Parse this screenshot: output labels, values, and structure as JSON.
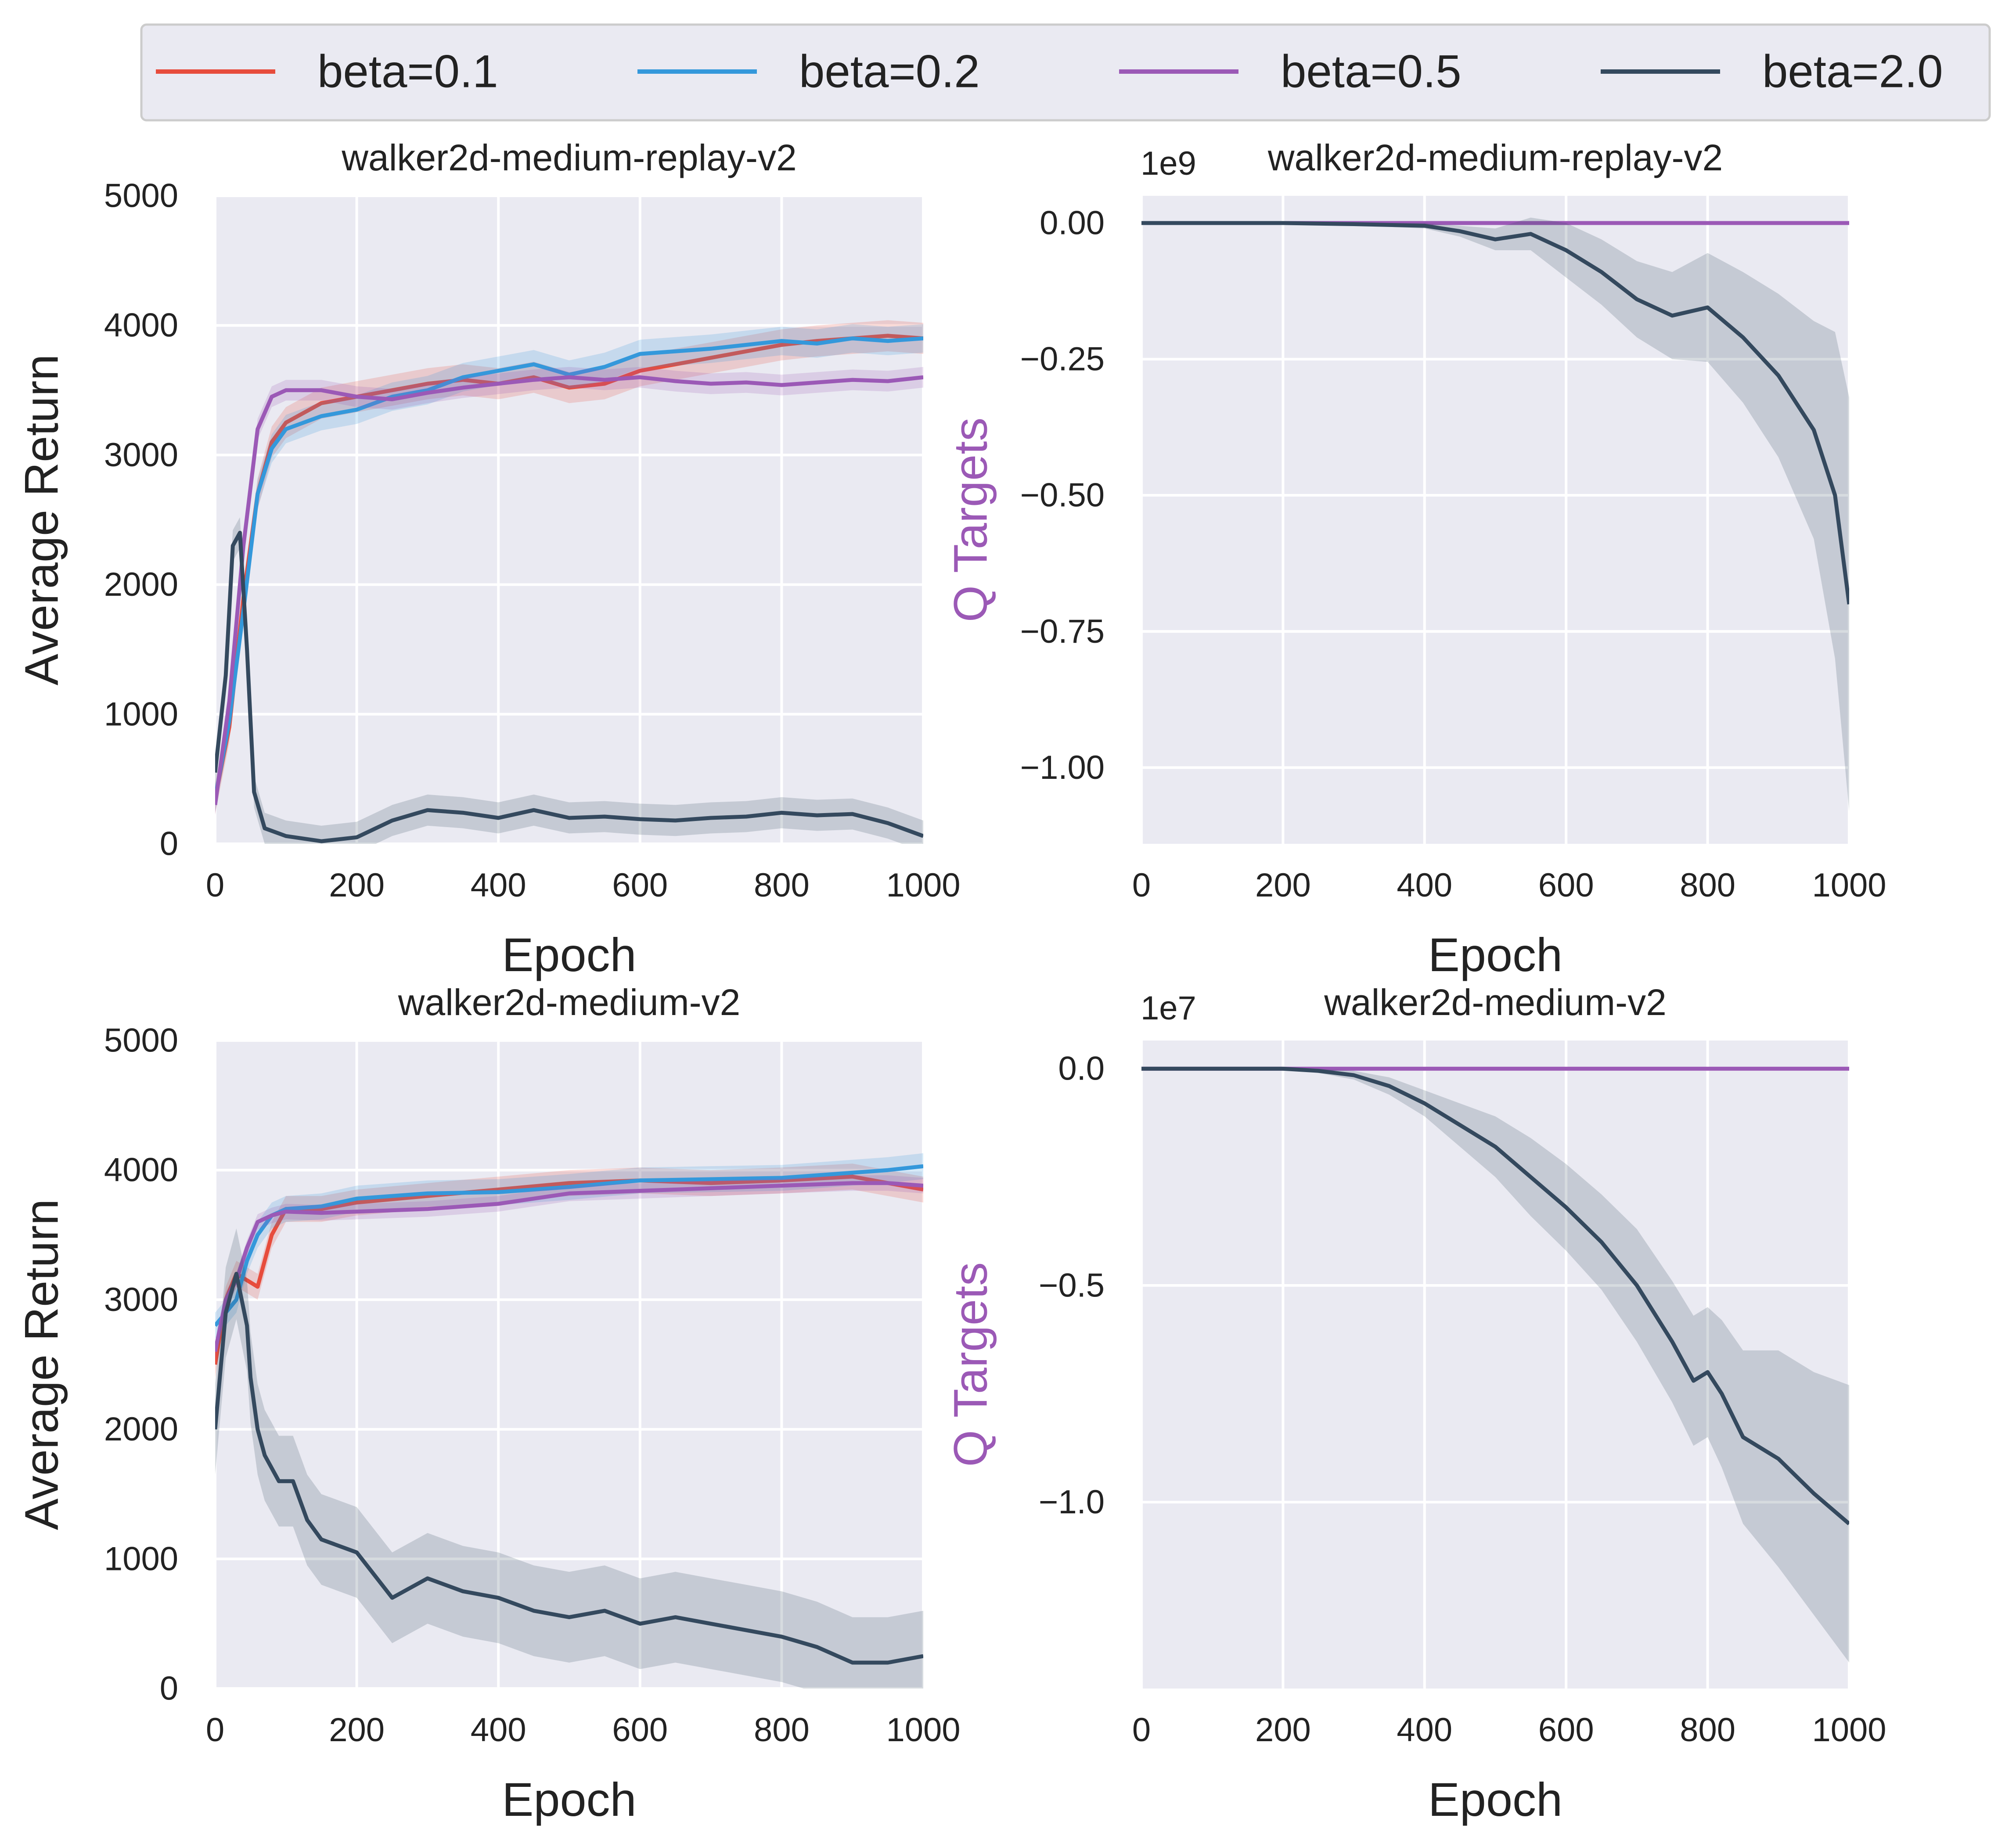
{
  "legend": {
    "entries": [
      {
        "label": "beta=0.1",
        "color": "#e74c3c"
      },
      {
        "label": "beta=0.2",
        "color": "#3498db"
      },
      {
        "label": "beta=0.5",
        "color": "#9b59b6"
      },
      {
        "label": "beta=2.0",
        "color": "#34495e"
      }
    ]
  },
  "chart_data": [
    {
      "type": "line",
      "title": "walker2d-medium-replay-v2",
      "xlabel": "Epoch",
      "ylabel": "Average Return",
      "ylabel_color": "#222222",
      "xlim": [
        0,
        1000
      ],
      "ylim": [
        0,
        5000
      ],
      "xticks": [
        0,
        200,
        400,
        600,
        800,
        1000
      ],
      "xtick_labels": [
        "0",
        "200",
        "400",
        "600",
        "800",
        "1000"
      ],
      "yticks": [
        0,
        1000,
        2000,
        3000,
        4000,
        5000
      ],
      "ytick_labels": [
        "0",
        "1000",
        "2000",
        "3000",
        "4000",
        "5000"
      ],
      "offset_text": "",
      "series": [
        {
          "name": "beta=0.1",
          "color": "#e74c3c",
          "band": 120,
          "x": [
            0,
            20,
            40,
            60,
            80,
            100,
            150,
            200,
            250,
            300,
            350,
            400,
            450,
            500,
            550,
            600,
            650,
            700,
            750,
            800,
            850,
            900,
            950,
            1000
          ],
          "y": [
            350,
            900,
            1900,
            2700,
            3100,
            3250,
            3400,
            3450,
            3500,
            3550,
            3580,
            3550,
            3600,
            3520,
            3550,
            3650,
            3700,
            3750,
            3800,
            3850,
            3880,
            3900,
            3920,
            3900
          ]
        },
        {
          "name": "beta=0.2",
          "color": "#3498db",
          "band": 110,
          "x": [
            0,
            20,
            40,
            60,
            80,
            100,
            150,
            200,
            250,
            300,
            350,
            400,
            450,
            500,
            550,
            600,
            650,
            700,
            750,
            800,
            850,
            900,
            950,
            1000
          ],
          "y": [
            350,
            950,
            1800,
            2700,
            3050,
            3200,
            3300,
            3350,
            3450,
            3500,
            3600,
            3650,
            3700,
            3620,
            3680,
            3780,
            3800,
            3820,
            3850,
            3880,
            3860,
            3900,
            3880,
            3900
          ]
        },
        {
          "name": "beta=0.5",
          "color": "#9b59b6",
          "band": 80,
          "x": [
            0,
            20,
            40,
            60,
            80,
            100,
            150,
            200,
            250,
            300,
            350,
            400,
            450,
            500,
            550,
            600,
            650,
            700,
            750,
            800,
            850,
            900,
            950,
            1000
          ],
          "y": [
            300,
            1100,
            2300,
            3200,
            3450,
            3500,
            3500,
            3450,
            3430,
            3480,
            3520,
            3550,
            3580,
            3600,
            3580,
            3600,
            3570,
            3550,
            3560,
            3540,
            3560,
            3580,
            3570,
            3600
          ]
        },
        {
          "name": "beta=2.0",
          "color": "#34495e",
          "band": 120,
          "x": [
            0,
            15,
            25,
            35,
            45,
            55,
            70,
            100,
            150,
            200,
            250,
            300,
            350,
            400,
            450,
            500,
            550,
            600,
            650,
            700,
            750,
            800,
            850,
            900,
            950,
            1000
          ],
          "y": [
            550,
            1300,
            2300,
            2400,
            1500,
            400,
            120,
            60,
            20,
            50,
            180,
            260,
            240,
            200,
            260,
            200,
            210,
            190,
            180,
            200,
            210,
            240,
            220,
            230,
            160,
            60
          ]
        }
      ]
    },
    {
      "type": "line",
      "title": "walker2d-medium-replay-v2",
      "xlabel": "Epoch",
      "ylabel": "Q Targets",
      "ylabel_color": "#9b59b6",
      "xlim": [
        0,
        1000
      ],
      "ylim": [
        -1.14,
        0.05
      ],
      "xticks": [
        0,
        200,
        400,
        600,
        800,
        1000
      ],
      "xtick_labels": [
        "0",
        "200",
        "400",
        "600",
        "800",
        "1000"
      ],
      "yticks": [
        0.0,
        -0.25,
        -0.5,
        -0.75,
        -1.0
      ],
      "ytick_labels": [
        "0.00",
        "−0.25",
        "−0.50",
        "−0.75",
        "−1.00"
      ],
      "offset_text": "1e9",
      "series": [
        {
          "name": "beta=0.5",
          "color": "#9b59b6",
          "band": 0,
          "x": [
            0,
            1000
          ],
          "y": [
            0.0,
            0.0
          ]
        },
        {
          "name": "beta=2.0",
          "color": "#34495e",
          "x": [
            0,
            200,
            300,
            400,
            450,
            500,
            550,
            600,
            650,
            700,
            750,
            800,
            850,
            900,
            950,
            980,
            1000
          ],
          "y": [
            0.0,
            0.0,
            -0.002,
            -0.005,
            -0.015,
            -0.03,
            -0.02,
            -0.05,
            -0.09,
            -0.14,
            -0.17,
            -0.155,
            -0.21,
            -0.28,
            -0.38,
            -0.5,
            -0.7
          ],
          "band_width": [
            0.0,
            0.0,
            0.002,
            0.005,
            0.01,
            0.02,
            0.03,
            0.05,
            0.06,
            0.07,
            0.08,
            0.1,
            0.12,
            0.15,
            0.2,
            0.3,
            0.38
          ]
        }
      ]
    },
    {
      "type": "line",
      "title": "walker2d-medium-v2",
      "xlabel": "Epoch",
      "ylabel": "Average Return",
      "ylabel_color": "#222222",
      "xlim": [
        0,
        1000
      ],
      "ylim": [
        0,
        5000
      ],
      "xticks": [
        0,
        200,
        400,
        600,
        800,
        1000
      ],
      "xtick_labels": [
        "0",
        "200",
        "400",
        "600",
        "800",
        "1000"
      ],
      "yticks": [
        0,
        1000,
        2000,
        3000,
        4000,
        5000
      ],
      "ytick_labels": [
        "0",
        "1000",
        "2000",
        "3000",
        "4000",
        "5000"
      ],
      "offset_text": "",
      "series": [
        {
          "name": "beta=0.1",
          "color": "#e74c3c",
          "band": 100,
          "x": [
            0,
            15,
            30,
            45,
            60,
            80,
            100,
            150,
            200,
            300,
            400,
            500,
            600,
            700,
            800,
            900,
            950,
            1000
          ],
          "y": [
            2500,
            3000,
            3200,
            3150,
            3100,
            3500,
            3700,
            3700,
            3750,
            3800,
            3850,
            3900,
            3920,
            3900,
            3920,
            3950,
            3900,
            3850
          ]
        },
        {
          "name": "beta=0.2",
          "color": "#3498db",
          "band": 100,
          "x": [
            0,
            15,
            30,
            45,
            60,
            80,
            100,
            150,
            200,
            300,
            400,
            500,
            600,
            700,
            800,
            900,
            950,
            1000
          ],
          "y": [
            2800,
            2900,
            3000,
            3300,
            3500,
            3650,
            3700,
            3720,
            3780,
            3820,
            3830,
            3870,
            3920,
            3930,
            3940,
            3980,
            4000,
            4030
          ]
        },
        {
          "name": "beta=0.5",
          "color": "#9b59b6",
          "band": 60,
          "x": [
            0,
            15,
            30,
            45,
            60,
            80,
            100,
            150,
            200,
            300,
            400,
            500,
            600,
            700,
            800,
            900,
            950,
            1000
          ],
          "y": [
            2600,
            3000,
            3150,
            3400,
            3600,
            3650,
            3680,
            3670,
            3680,
            3700,
            3740,
            3820,
            3840,
            3860,
            3880,
            3900,
            3900,
            3880
          ]
        },
        {
          "name": "beta=2.0",
          "color": "#34495e",
          "band": 350,
          "x": [
            0,
            15,
            30,
            45,
            50,
            60,
            70,
            90,
            110,
            130,
            150,
            200,
            250,
            300,
            350,
            400,
            450,
            500,
            550,
            600,
            650,
            700,
            750,
            800,
            850,
            900,
            950,
            1000
          ],
          "y": [
            2000,
            2900,
            3200,
            2800,
            2400,
            2000,
            1800,
            1600,
            1600,
            1300,
            1150,
            1050,
            700,
            850,
            750,
            700,
            600,
            550,
            600,
            500,
            550,
            500,
            450,
            400,
            320,
            200,
            200,
            250
          ]
        }
      ]
    },
    {
      "type": "line",
      "title": "walker2d-medium-v2",
      "xlabel": "Epoch",
      "ylabel": "Q Targets",
      "ylabel_color": "#9b59b6",
      "xlim": [
        0,
        1000
      ],
      "ylim": [
        -1.43,
        0.065
      ],
      "xticks": [
        0,
        200,
        400,
        600,
        800,
        1000
      ],
      "xtick_labels": [
        "0",
        "200",
        "400",
        "600",
        "800",
        "1000"
      ],
      "yticks": [
        0.0,
        -0.5,
        -1.0
      ],
      "ytick_labels": [
        "0.0",
        "−0.5",
        "−1.0"
      ],
      "offset_text": "1e7",
      "series": [
        {
          "name": "beta=0.5",
          "color": "#9b59b6",
          "band": 0,
          "x": [
            0,
            1000
          ],
          "y": [
            0.0,
            0.0
          ]
        },
        {
          "name": "beta=2.0",
          "color": "#34495e",
          "x": [
            0,
            200,
            250,
            300,
            350,
            400,
            450,
            500,
            550,
            600,
            650,
            700,
            750,
            780,
            800,
            820,
            850,
            900,
            950,
            1000
          ],
          "y": [
            0.0,
            0.0,
            -0.005,
            -0.015,
            -0.04,
            -0.08,
            -0.13,
            -0.18,
            -0.25,
            -0.32,
            -0.4,
            -0.5,
            -0.63,
            -0.72,
            -0.7,
            -0.75,
            -0.85,
            -0.9,
            -0.98,
            -1.05
          ],
          "band_width": [
            0.0,
            0.0,
            0.005,
            0.01,
            0.02,
            0.03,
            0.05,
            0.07,
            0.09,
            0.1,
            0.11,
            0.13,
            0.14,
            0.15,
            0.15,
            0.17,
            0.2,
            0.25,
            0.28,
            0.32
          ]
        }
      ]
    }
  ]
}
